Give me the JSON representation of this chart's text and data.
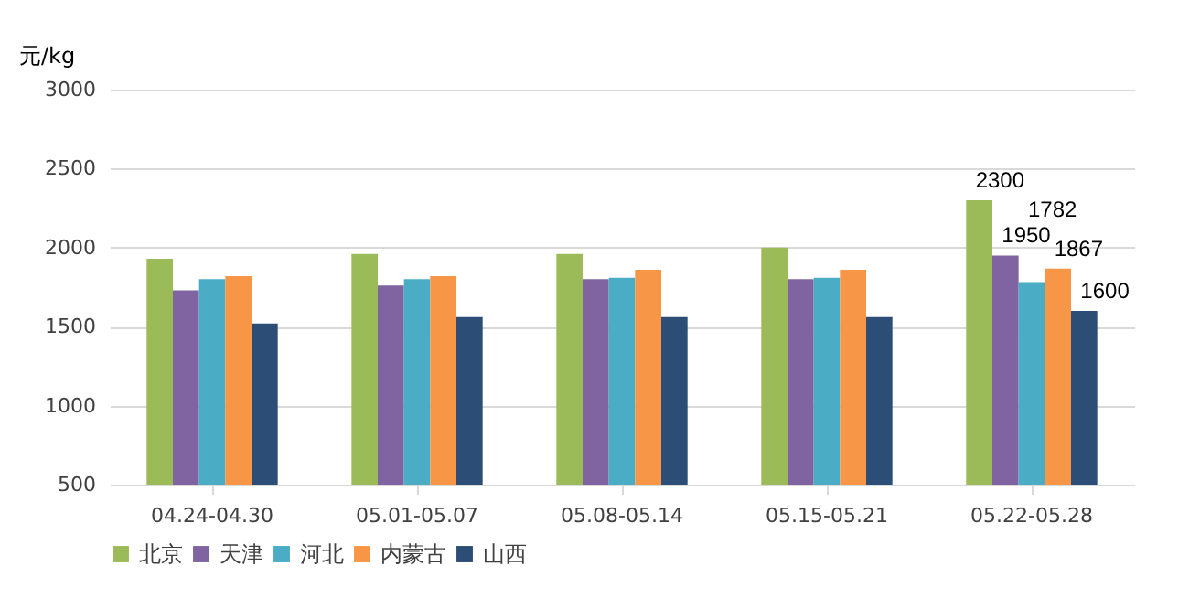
{
  "chart_data": {
    "type": "bar",
    "ylabel": "元/kg",
    "categories": [
      "04.24-04.30",
      "05.01-05.07",
      "05.08-05.14",
      "05.15-05.21",
      "05.22-05.28"
    ],
    "series": [
      {
        "name": "北京",
        "color": "#9bbb59",
        "values": [
          1930,
          1960,
          1960,
          2000,
          2300
        ],
        "value_labels": [
          null,
          null,
          null,
          null,
          "2300"
        ]
      },
      {
        "name": "天津",
        "color": "#8064a2",
        "values": [
          1730,
          1760,
          1800,
          1800,
          1950
        ],
        "value_labels": [
          null,
          null,
          null,
          null,
          "1950"
        ]
      },
      {
        "name": "河北",
        "color": "#4bacc6",
        "values": [
          1800,
          1800,
          1810,
          1810,
          1782
        ],
        "value_labels": [
          null,
          null,
          null,
          null,
          "1782"
        ]
      },
      {
        "name": "内蒙古",
        "color": "#f79646",
        "values": [
          1820,
          1820,
          1860,
          1860,
          1867
        ],
        "value_labels": [
          null,
          null,
          null,
          null,
          "1867"
        ]
      },
      {
        "name": "山西",
        "color": "#2c4d75",
        "values": [
          1520,
          1560,
          1560,
          1560,
          1600
        ],
        "value_labels": [
          null,
          null,
          null,
          null,
          "1600"
        ]
      }
    ],
    "ylim": [
      500,
      3000
    ],
    "yticks": [
      500,
      1000,
      1500,
      2000,
      2500,
      3000
    ],
    "grid": "y",
    "legend": "bottom"
  }
}
